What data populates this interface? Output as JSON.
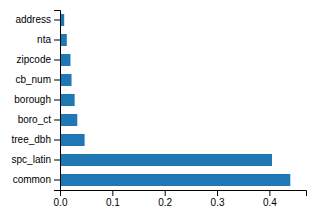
{
  "chart_data": {
    "type": "bar",
    "orientation": "horizontal",
    "categories": [
      "common",
      "spc_latin",
      "tree_dbh",
      "boro_ct",
      "borough",
      "cb_num",
      "zipcode",
      "nta",
      "address"
    ],
    "values": [
      0.44,
      0.405,
      0.047,
      0.033,
      0.028,
      0.022,
      0.02,
      0.013,
      0.008
    ],
    "color": "#1f77b4",
    "xlim": [
      0,
      0.47
    ],
    "xticks": [
      {
        "value": 0.0,
        "label": "0.0"
      },
      0.1,
      0.2,
      0.3,
      0.4
    ],
    "grid": false
  }
}
